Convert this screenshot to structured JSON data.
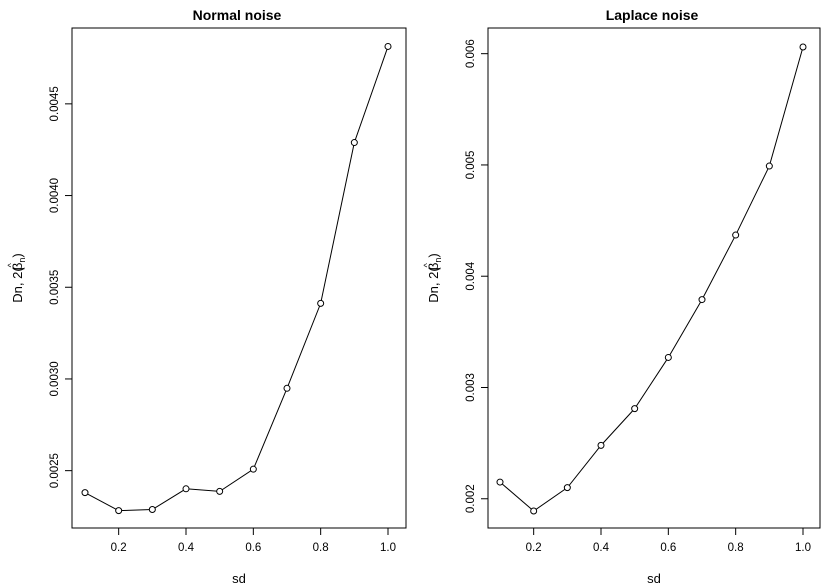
{
  "chart_data": [
    {
      "type": "line",
      "title": "Normal noise",
      "xlabel": "sd",
      "ylabel": {
        "main": "Dn, 2(",
        "hat": "^",
        "sym": "β",
        "sub": "n",
        "close": ")"
      },
      "xlim": [
        0.1,
        1.0
      ],
      "ylim": [
        0.00228,
        0.00481
      ],
      "xticks": [
        0.2,
        0.4,
        0.6,
        0.8,
        1.0
      ],
      "xtick_labels": [
        "0.2",
        "0.4",
        "0.6",
        "0.8",
        "1.0"
      ],
      "yticks": [
        0.0025,
        0.003,
        0.0035,
        0.004,
        0.0045
      ],
      "ytick_labels": [
        "0.0025",
        "0.0030",
        "0.0035",
        "0.0040",
        "0.0045"
      ],
      "x": [
        0.1,
        0.2,
        0.3,
        0.4,
        0.5,
        0.6,
        0.7,
        0.8,
        0.9,
        1.0
      ],
      "y": [
        0.00238,
        0.002282,
        0.002288,
        0.002401,
        0.002387,
        0.002508,
        0.002949,
        0.003412,
        0.004289,
        0.004813
      ],
      "grid": false
    },
    {
      "type": "line",
      "title": "Laplace noise",
      "xlabel": "sd",
      "ylabel": {
        "main": "Dn, 2(",
        "hat": "^",
        "sym": "β",
        "sub": "n",
        "close": ")"
      },
      "xlim": [
        0.1,
        1.0
      ],
      "ylim": [
        0.00189,
        0.00606
      ],
      "xticks": [
        0.2,
        0.4,
        0.6,
        0.8,
        1.0
      ],
      "xtick_labels": [
        "0.2",
        "0.4",
        "0.6",
        "0.8",
        "1.0"
      ],
      "yticks": [
        0.002,
        0.003,
        0.004,
        0.005,
        0.006
      ],
      "ytick_labels": [
        "0.002",
        "0.003",
        "0.004",
        "0.005",
        "0.006"
      ],
      "x": [
        0.1,
        0.2,
        0.3,
        0.4,
        0.5,
        0.6,
        0.7,
        0.8,
        0.9,
        1.0
      ],
      "y": [
        0.00215,
        0.00189,
        0.0021,
        0.00248,
        0.00281,
        0.00327,
        0.00379,
        0.00437,
        0.00499,
        0.00606
      ],
      "grid": false
    }
  ]
}
